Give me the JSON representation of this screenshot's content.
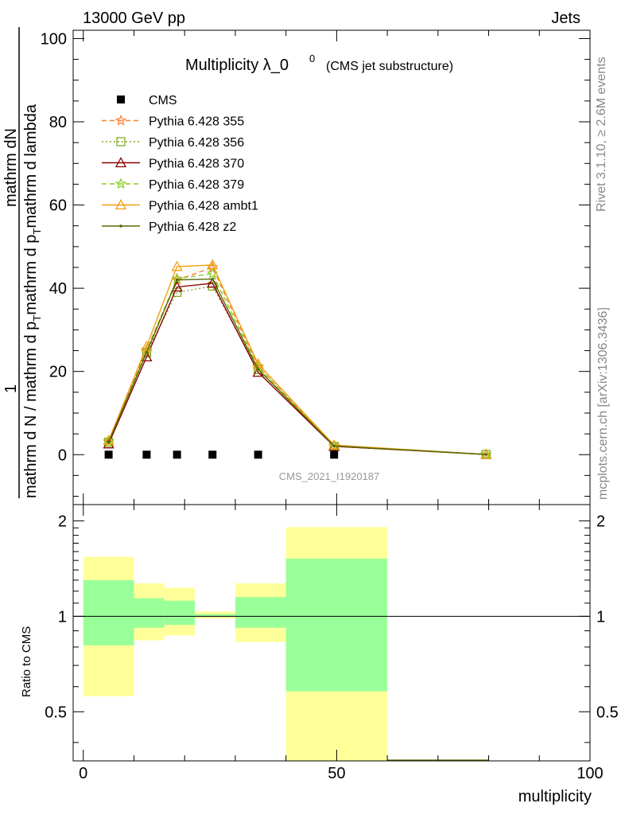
{
  "header": {
    "energy_label": "13000 GeV pp",
    "category_label": "Jets"
  },
  "side_labels": {
    "rivet": "Rivet 3.1.10, ≥ 2.6M events",
    "source": "mcplots.cern.ch [arXiv:1306.3436]"
  },
  "chart_data": [
    {
      "type": "line",
      "title_main": "Multiplicity λ_0",
      "title_sup": "0",
      "title_sub": "(CMS jet substructure)",
      "analysis_id": "CMS_2021_I1920187",
      "ylabel": {
        "numerator": "mathrm dN",
        "fraction_one": "1",
        "denominator": "mathrm d N / mathrm d p",
        "denominator_sub": "T",
        "denominator_tail": "mathrm d p",
        "denominator_tail_sub": "T",
        "denominator_end": "mathrm d lambda"
      },
      "xlim": [
        -2,
        100
      ],
      "ylim": [
        -12,
        102
      ],
      "y_ticks": [
        0,
        20,
        40,
        60,
        80,
        100
      ],
      "legend_placement": "top-left",
      "series": [
        {
          "name": "CMS",
          "color": "#000000",
          "marker": "square",
          "style": "none",
          "x": [
            5,
            12.5,
            18.5,
            25.5,
            34.5,
            49.5
          ],
          "y": [
            0,
            0,
            0,
            0,
            0,
            0
          ]
        },
        {
          "name": "Pythia 6.428 355",
          "color": "#ff7f2a",
          "marker": "star",
          "style": "dashed",
          "x": [
            5,
            12.5,
            18.5,
            25.5,
            34.5,
            49.5,
            79.5
          ],
          "y": [
            3.2,
            25.2,
            42.0,
            45.0,
            21.2,
            2.2,
            0.05
          ]
        },
        {
          "name": "Pythia 6.428 356",
          "color": "#7faa22",
          "marker": "open-square",
          "style": "dotted",
          "x": [
            5,
            12.5,
            18.5,
            25.5,
            34.5,
            49.5,
            79.5
          ],
          "y": [
            3.0,
            24.5,
            39.0,
            40.5,
            20.5,
            2.0,
            0.05
          ]
        },
        {
          "name": "Pythia 6.428 370",
          "color": "#8b0000",
          "marker": "open-triangle",
          "style": "solid",
          "x": [
            5,
            12.5,
            18.5,
            25.5,
            34.5,
            49.5,
            79.5
          ],
          "y": [
            2.6,
            23.5,
            40.3,
            41.2,
            19.8,
            2.0,
            0.05
          ]
        },
        {
          "name": "Pythia 6.428 379",
          "color": "#88cc22",
          "marker": "star",
          "style": "dashed",
          "x": [
            5,
            12.5,
            18.5,
            25.5,
            34.5,
            49.5,
            79.5
          ],
          "y": [
            3.1,
            25.0,
            42.3,
            43.5,
            21.0,
            2.1,
            0.05
          ]
        },
        {
          "name": "Pythia 6.428 ambt1",
          "color": "#f0a010",
          "marker": "open-triangle",
          "style": "solid",
          "x": [
            5,
            12.5,
            18.5,
            25.5,
            34.5,
            49.5,
            79.5
          ],
          "y": [
            3.4,
            26.0,
            45.2,
            45.6,
            21.8,
            2.3,
            0.05
          ]
        },
        {
          "name": "Pythia 6.428 z2",
          "color": "#556b00",
          "marker": "dot",
          "style": "solid",
          "x": [
            5,
            12.5,
            18.5,
            25.5,
            34.5,
            49.5,
            79.5
          ],
          "y": [
            3.0,
            24.6,
            42.0,
            42.2,
            20.5,
            2.1,
            0.05
          ]
        }
      ]
    },
    {
      "type": "area",
      "ylabel": "Ratio to CMS",
      "xlabel": "multiplicity",
      "xlim": [
        -2,
        100
      ],
      "ylim": [
        0.35,
        2.25
      ],
      "y_ticks": [
        0.5,
        1,
        2
      ],
      "x_ticks": [
        0,
        50,
        100
      ],
      "reference_line": 1,
      "bins": [
        {
          "x_low": 0,
          "x_high": 10,
          "yellow": [
            0.56,
            1.54
          ],
          "green": [
            0.81,
            1.3
          ]
        },
        {
          "x_low": 10,
          "x_high": 16,
          "yellow": [
            0.84,
            1.27
          ],
          "green": [
            0.92,
            1.14
          ]
        },
        {
          "x_low": 16,
          "x_high": 22,
          "yellow": [
            0.87,
            1.23
          ],
          "green": [
            0.94,
            1.12
          ]
        },
        {
          "x_low": 22,
          "x_high": 30,
          "yellow": [
            0.985,
            1.035
          ],
          "green": [
            0.995,
            1.015
          ]
        },
        {
          "x_low": 30,
          "x_high": 40,
          "yellow": [
            0.83,
            1.27
          ],
          "green": [
            0.92,
            1.15
          ]
        },
        {
          "x_low": 40,
          "x_high": 60,
          "yellow": [
            0.3,
            1.91
          ],
          "green": [
            0.58,
            1.52
          ]
        }
      ],
      "colors": {
        "yellow": "#ffff99",
        "green": "#99ff99"
      }
    }
  ]
}
